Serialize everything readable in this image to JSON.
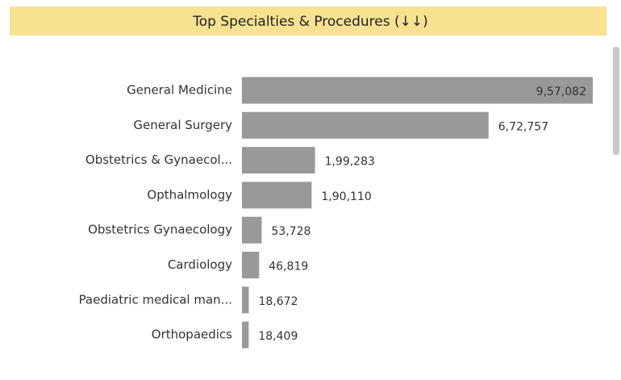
{
  "chart_data": {
    "type": "bar",
    "orientation": "horizontal",
    "title": "Top Specialties & Procedures (↓↓)",
    "categories": [
      "General Medicine",
      "General Surgery",
      "Obstetrics & Gynaecol...",
      "Opthalmology",
      "Obstetrics Gynaecology",
      "Cardiology",
      "Paediatric medical man...",
      "Orthopaedics"
    ],
    "values": [
      957082,
      672757,
      199283,
      190110,
      53728,
      46819,
      18672,
      18409
    ],
    "value_labels": [
      "9,57,082",
      "6,72,757",
      "1,99,283",
      "1,90,110",
      "53,728",
      "46,819",
      "18,672",
      "18,409"
    ],
    "color": "#999999"
  }
}
